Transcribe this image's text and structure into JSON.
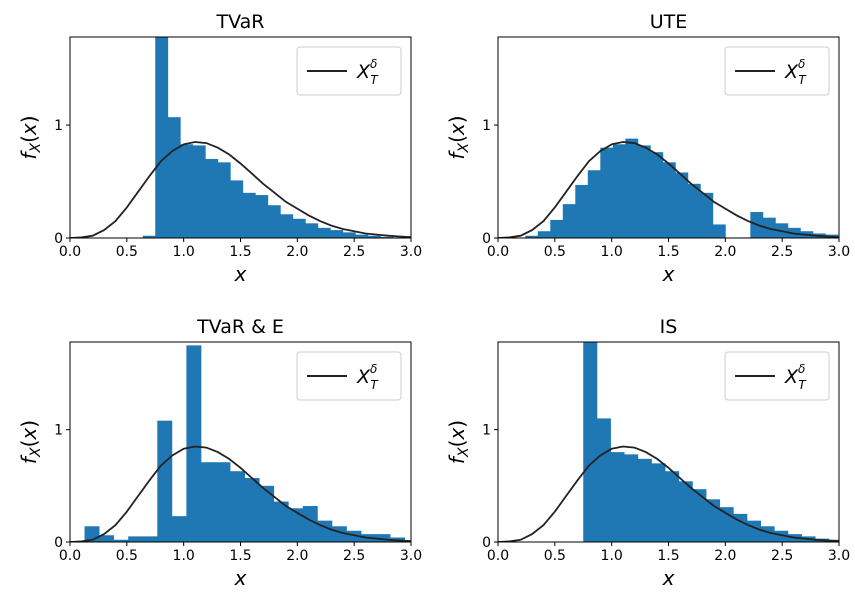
{
  "chart_data": [
    {
      "type": "bar",
      "title": "TVaR",
      "xlabel": "x",
      "ylabel": "f_X(x)",
      "xlim": [
        0,
        3
      ],
      "ylim": [
        0,
        1.78
      ],
      "xticks": [
        "0.0",
        "0.5",
        "1.0",
        "1.5",
        "2.0",
        "2.5",
        "3.0"
      ],
      "yticks": [
        "0",
        "1"
      ],
      "legend": {
        "position": "top-right",
        "entries": [
          "X_T^δ"
        ]
      },
      "bin_width": 0.11,
      "bins": [
        [
          0.64,
          0.02
        ],
        [
          0.75,
          1.78
        ],
        [
          0.86,
          1.07
        ],
        [
          0.97,
          0.83
        ],
        [
          1.08,
          0.82
        ],
        [
          1.19,
          0.7
        ],
        [
          1.3,
          0.67
        ],
        [
          1.41,
          0.51
        ],
        [
          1.52,
          0.4
        ],
        [
          1.63,
          0.38
        ],
        [
          1.74,
          0.29
        ],
        [
          1.85,
          0.21
        ],
        [
          1.96,
          0.17
        ],
        [
          2.07,
          0.13
        ],
        [
          2.18,
          0.09
        ],
        [
          2.29,
          0.07
        ],
        [
          2.4,
          0.05
        ],
        [
          2.51,
          0.03
        ],
        [
          2.62,
          0.02
        ],
        [
          2.73,
          0.01
        ],
        [
          2.84,
          0.005
        ]
      ],
      "curve": {
        "name": "X_T^δ",
        "x": [
          0.0,
          0.1,
          0.2,
          0.3,
          0.4,
          0.5,
          0.6,
          0.7,
          0.8,
          0.9,
          1.0,
          1.1,
          1.2,
          1.3,
          1.4,
          1.5,
          1.6,
          1.7,
          1.8,
          1.9,
          2.0,
          2.1,
          2.2,
          2.3,
          2.4,
          2.5,
          2.6,
          2.7,
          2.8,
          2.9,
          3.0
        ],
        "y": [
          0.0,
          0.005,
          0.02,
          0.07,
          0.15,
          0.27,
          0.41,
          0.55,
          0.68,
          0.77,
          0.83,
          0.85,
          0.84,
          0.8,
          0.74,
          0.66,
          0.57,
          0.48,
          0.4,
          0.32,
          0.26,
          0.2,
          0.15,
          0.11,
          0.08,
          0.06,
          0.04,
          0.03,
          0.02,
          0.013,
          0.008
        ]
      }
    },
    {
      "type": "bar",
      "title": "UTE",
      "xlabel": "x",
      "ylabel": "f_X(x)",
      "xlim": [
        0,
        3
      ],
      "ylim": [
        0,
        1.78
      ],
      "xticks": [
        "0.0",
        "0.5",
        "1.0",
        "1.5",
        "2.0",
        "2.5",
        "3.0"
      ],
      "yticks": [
        "0",
        "1"
      ],
      "legend": {
        "position": "top-right",
        "entries": [
          "X_T^δ"
        ]
      },
      "bin_width": 0.11,
      "bins": [
        [
          0.24,
          0.02
        ],
        [
          0.35,
          0.06
        ],
        [
          0.46,
          0.16
        ],
        [
          0.57,
          0.3
        ],
        [
          0.68,
          0.47
        ],
        [
          0.79,
          0.6
        ],
        [
          0.9,
          0.8
        ],
        [
          1.01,
          0.83
        ],
        [
          1.12,
          0.88
        ],
        [
          1.23,
          0.82
        ],
        [
          1.34,
          0.76
        ],
        [
          1.45,
          0.67
        ],
        [
          1.56,
          0.58
        ],
        [
          1.67,
          0.48
        ],
        [
          1.78,
          0.4
        ],
        [
          1.89,
          0.12
        ],
        [
          2.0,
          0.0
        ],
        [
          2.11,
          0.005
        ],
        [
          2.22,
          0.23
        ],
        [
          2.33,
          0.18
        ],
        [
          2.44,
          0.13
        ],
        [
          2.55,
          0.09
        ],
        [
          2.66,
          0.06
        ],
        [
          2.77,
          0.04
        ],
        [
          2.88,
          0.03
        ]
      ],
      "curve": {
        "name": "X_T^δ",
        "x": [
          0.0,
          0.1,
          0.2,
          0.3,
          0.4,
          0.5,
          0.6,
          0.7,
          0.8,
          0.9,
          1.0,
          1.1,
          1.2,
          1.3,
          1.4,
          1.5,
          1.6,
          1.7,
          1.8,
          1.9,
          2.0,
          2.1,
          2.2,
          2.3,
          2.4,
          2.5,
          2.6,
          2.7,
          2.8,
          2.9,
          3.0
        ],
        "y": [
          0.0,
          0.005,
          0.02,
          0.07,
          0.15,
          0.27,
          0.41,
          0.55,
          0.68,
          0.77,
          0.83,
          0.85,
          0.84,
          0.8,
          0.74,
          0.66,
          0.57,
          0.48,
          0.4,
          0.32,
          0.26,
          0.2,
          0.15,
          0.11,
          0.08,
          0.06,
          0.04,
          0.03,
          0.02,
          0.013,
          0.008
        ]
      }
    },
    {
      "type": "bar",
      "title": "TVaR & E",
      "xlabel": "x",
      "ylabel": "f_X(x)",
      "xlim": [
        0,
        3
      ],
      "ylim": [
        0,
        1.78
      ],
      "xticks": [
        "0.0",
        "0.5",
        "1.0",
        "1.5",
        "2.0",
        "2.5",
        "3.0"
      ],
      "yticks": [
        "0",
        "1"
      ],
      "legend": {
        "position": "top-right",
        "entries": [
          "X_T^δ"
        ]
      },
      "bin_width": 0.128,
      "bins": [
        [
          0.128,
          0.14
        ],
        [
          0.256,
          0.06
        ],
        [
          0.384,
          0.02
        ],
        [
          0.512,
          0.05
        ],
        [
          0.64,
          0.05
        ],
        [
          0.768,
          1.08
        ],
        [
          0.896,
          0.23
        ],
        [
          1.024,
          1.75
        ],
        [
          1.152,
          0.71
        ],
        [
          1.28,
          0.71
        ],
        [
          1.408,
          0.63
        ],
        [
          1.536,
          0.57
        ],
        [
          1.664,
          0.5
        ],
        [
          1.792,
          0.36
        ],
        [
          1.92,
          0.3
        ],
        [
          2.048,
          0.32
        ],
        [
          2.176,
          0.19
        ],
        [
          2.304,
          0.14
        ],
        [
          2.432,
          0.1
        ],
        [
          2.56,
          0.07
        ],
        [
          2.688,
          0.07
        ],
        [
          2.816,
          0.04
        ]
      ],
      "curve": {
        "name": "X_T^δ",
        "x": [
          0.0,
          0.1,
          0.2,
          0.3,
          0.4,
          0.5,
          0.6,
          0.7,
          0.8,
          0.9,
          1.0,
          1.1,
          1.2,
          1.3,
          1.4,
          1.5,
          1.6,
          1.7,
          1.8,
          1.9,
          2.0,
          2.1,
          2.2,
          2.3,
          2.4,
          2.5,
          2.6,
          2.7,
          2.8,
          2.9,
          3.0
        ],
        "y": [
          0.0,
          0.005,
          0.02,
          0.07,
          0.15,
          0.27,
          0.41,
          0.55,
          0.68,
          0.77,
          0.83,
          0.85,
          0.84,
          0.8,
          0.74,
          0.66,
          0.57,
          0.48,
          0.4,
          0.32,
          0.26,
          0.2,
          0.15,
          0.11,
          0.08,
          0.06,
          0.04,
          0.03,
          0.02,
          0.013,
          0.008
        ]
      }
    },
    {
      "type": "bar",
      "title": "IS",
      "xlabel": "x",
      "ylabel": "f_X(x)",
      "xlim": [
        0,
        3
      ],
      "ylim": [
        0,
        1.78
      ],
      "xticks": [
        "0.0",
        "0.5",
        "1.0",
        "1.5",
        "2.0",
        "2.5",
        "3.0"
      ],
      "yticks": [
        "0",
        "1"
      ],
      "legend": {
        "position": "top-right",
        "entries": [
          "X_T^δ"
        ]
      },
      "bin_width": 0.12,
      "bins": [
        [
          0.75,
          1.78
        ],
        [
          0.87,
          1.1
        ],
        [
          0.99,
          0.8
        ],
        [
          1.11,
          0.78
        ],
        [
          1.23,
          0.74
        ],
        [
          1.35,
          0.7
        ],
        [
          1.47,
          0.63
        ],
        [
          1.59,
          0.54
        ],
        [
          1.71,
          0.47
        ],
        [
          1.83,
          0.38
        ],
        [
          1.95,
          0.31
        ],
        [
          2.07,
          0.25
        ],
        [
          2.19,
          0.19
        ],
        [
          2.31,
          0.14
        ],
        [
          2.43,
          0.1
        ],
        [
          2.55,
          0.07
        ],
        [
          2.67,
          0.05
        ],
        [
          2.79,
          0.03
        ],
        [
          2.91,
          0.02
        ]
      ],
      "curve": {
        "name": "X_T^δ",
        "x": [
          0.0,
          0.1,
          0.2,
          0.3,
          0.4,
          0.5,
          0.6,
          0.7,
          0.8,
          0.9,
          1.0,
          1.1,
          1.2,
          1.3,
          1.4,
          1.5,
          1.6,
          1.7,
          1.8,
          1.9,
          2.0,
          2.1,
          2.2,
          2.3,
          2.4,
          2.5,
          2.6,
          2.7,
          2.8,
          2.9,
          3.0
        ],
        "y": [
          0.0,
          0.005,
          0.02,
          0.07,
          0.15,
          0.27,
          0.41,
          0.55,
          0.68,
          0.77,
          0.83,
          0.85,
          0.84,
          0.8,
          0.74,
          0.66,
          0.57,
          0.48,
          0.4,
          0.32,
          0.26,
          0.2,
          0.15,
          0.11,
          0.08,
          0.06,
          0.04,
          0.03,
          0.02,
          0.013,
          0.008
        ]
      }
    }
  ],
  "colors": {
    "bar": "#1f77b4",
    "curve": "#222222",
    "axis": "#000000",
    "legend_border": "#cccccc"
  }
}
